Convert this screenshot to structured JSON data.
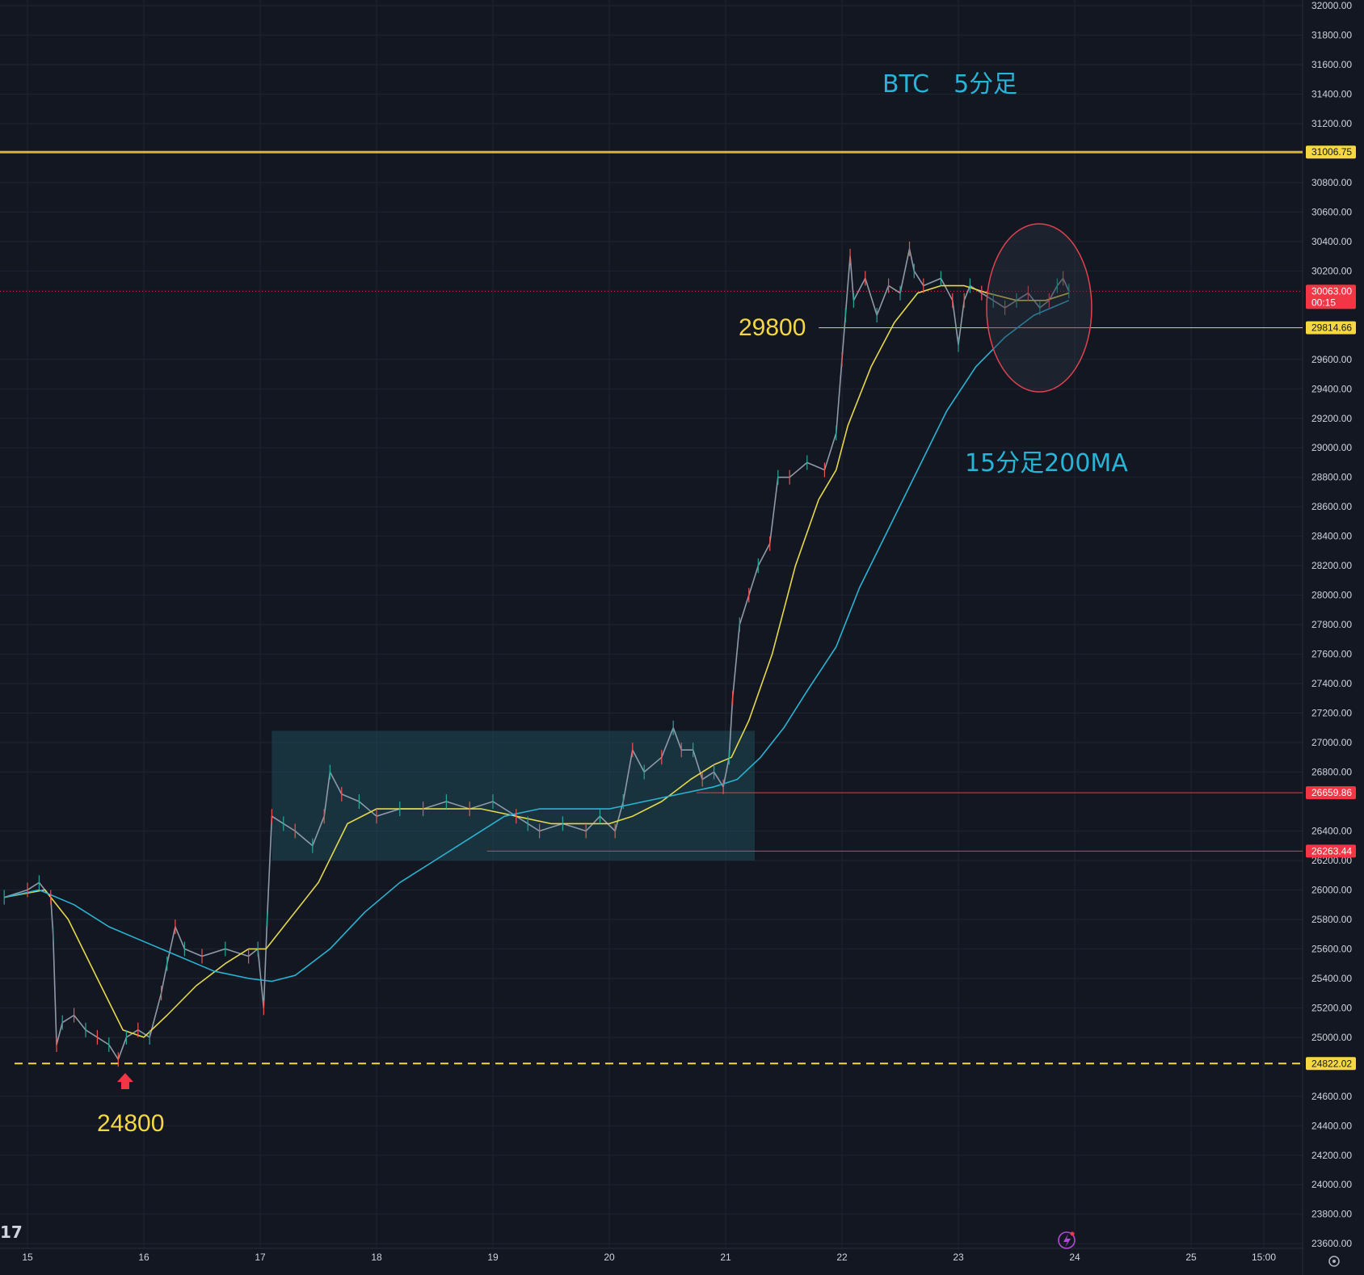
{
  "chart_data": {
    "type": "line",
    "symbol": "BTC",
    "timeframe": "5分足",
    "title": "BTC　5分足",
    "ylim": [
      23500,
      32000
    ],
    "y_ticks": [
      23600,
      23800,
      24000,
      24200,
      24400,
      24600,
      25000,
      25200,
      25400,
      25600,
      25800,
      26000,
      26200,
      26400,
      26800,
      27000,
      27200,
      27400,
      27600,
      27800,
      28000,
      28200,
      28400,
      28600,
      28800,
      29000,
      29200,
      29400,
      29600,
      30200,
      30400,
      30600,
      30800,
      31200,
      31400,
      31600,
      31800,
      32000
    ],
    "x_domain": [
      14.8,
      26.0
    ],
    "x_ticks": [
      {
        "x": 15,
        "label": "15"
      },
      {
        "x": 16,
        "label": "16"
      },
      {
        "x": 17,
        "label": "17"
      },
      {
        "x": 18,
        "label": "18"
      },
      {
        "x": 19,
        "label": "19"
      },
      {
        "x": 20,
        "label": "20"
      },
      {
        "x": 21,
        "label": "21"
      },
      {
        "x": 22,
        "label": "22"
      },
      {
        "x": 23,
        "label": "23"
      },
      {
        "x": 24,
        "label": "24"
      },
      {
        "x": 25,
        "label": "25"
      },
      {
        "x": 25.625,
        "label": "15:00"
      }
    ],
    "series": [
      {
        "name": "price",
        "color": "#8e9aa8",
        "points": [
          [
            14.8,
            25950
          ],
          [
            15.0,
            26000
          ],
          [
            15.1,
            26050
          ],
          [
            15.2,
            25950
          ],
          [
            15.22,
            25700
          ],
          [
            15.25,
            24950
          ],
          [
            15.3,
            25100
          ],
          [
            15.4,
            25150
          ],
          [
            15.5,
            25050
          ],
          [
            15.6,
            25000
          ],
          [
            15.7,
            24950
          ],
          [
            15.78,
            24850
          ],
          [
            15.85,
            25000
          ],
          [
            15.95,
            25050
          ],
          [
            16.05,
            25000
          ],
          [
            16.15,
            25300
          ],
          [
            16.2,
            25500
          ],
          [
            16.27,
            25750
          ],
          [
            16.35,
            25600
          ],
          [
            16.5,
            25550
          ],
          [
            16.7,
            25600
          ],
          [
            16.9,
            25550
          ],
          [
            16.98,
            25600
          ],
          [
            17.03,
            25200
          ],
          [
            17.06,
            25800
          ],
          [
            17.1,
            26500
          ],
          [
            17.2,
            26450
          ],
          [
            17.3,
            26400
          ],
          [
            17.45,
            26300
          ],
          [
            17.55,
            26500
          ],
          [
            17.6,
            26800
          ],
          [
            17.7,
            26650
          ],
          [
            17.85,
            26600
          ],
          [
            18.0,
            26500
          ],
          [
            18.2,
            26550
          ],
          [
            18.4,
            26550
          ],
          [
            18.6,
            26600
          ],
          [
            18.8,
            26550
          ],
          [
            19.0,
            26600
          ],
          [
            19.2,
            26500
          ],
          [
            19.3,
            26450
          ],
          [
            19.4,
            26400
          ],
          [
            19.6,
            26450
          ],
          [
            19.8,
            26400
          ],
          [
            19.92,
            26500
          ],
          [
            20.05,
            26400
          ],
          [
            20.12,
            26600
          ],
          [
            20.2,
            26950
          ],
          [
            20.3,
            26800
          ],
          [
            20.45,
            26900
          ],
          [
            20.55,
            27100
          ],
          [
            20.62,
            26950
          ],
          [
            20.72,
            26950
          ],
          [
            20.8,
            26750
          ],
          [
            20.9,
            26800
          ],
          [
            20.98,
            26700
          ],
          [
            21.03,
            26900
          ],
          [
            21.06,
            27300
          ],
          [
            21.12,
            27800
          ],
          [
            21.2,
            28000
          ],
          [
            21.28,
            28200
          ],
          [
            21.38,
            28350
          ],
          [
            21.45,
            28800
          ],
          [
            21.55,
            28800
          ],
          [
            21.7,
            28900
          ],
          [
            21.85,
            28850
          ],
          [
            21.95,
            29100
          ],
          [
            22.0,
            29600
          ],
          [
            22.03,
            29900
          ],
          [
            22.07,
            30300
          ],
          [
            22.1,
            30000
          ],
          [
            22.2,
            30150
          ],
          [
            22.3,
            29900
          ],
          [
            22.4,
            30100
          ],
          [
            22.5,
            30050
          ],
          [
            22.58,
            30350
          ],
          [
            22.62,
            30200
          ],
          [
            22.7,
            30100
          ],
          [
            22.85,
            30150
          ],
          [
            22.95,
            30000
          ],
          [
            23.0,
            29700
          ],
          [
            23.05,
            30000
          ],
          [
            23.1,
            30100
          ],
          [
            23.2,
            30050
          ],
          [
            23.3,
            30000
          ],
          [
            23.4,
            29950
          ],
          [
            23.5,
            30000
          ],
          [
            23.6,
            30050
          ],
          [
            23.7,
            29950
          ],
          [
            23.78,
            30000
          ],
          [
            23.85,
            30100
          ],
          [
            23.9,
            30150
          ],
          [
            23.95,
            30063
          ]
        ]
      },
      {
        "name": "MA",
        "color": "#e6d84a",
        "points": [
          [
            14.8,
            25950
          ],
          [
            15.15,
            26000
          ],
          [
            15.35,
            25800
          ],
          [
            15.6,
            25400
          ],
          [
            15.82,
            25050
          ],
          [
            16.0,
            25000
          ],
          [
            16.2,
            25150
          ],
          [
            16.45,
            25350
          ],
          [
            16.7,
            25500
          ],
          [
            16.9,
            25600
          ],
          [
            17.05,
            25600
          ],
          [
            17.2,
            25750
          ],
          [
            17.5,
            26050
          ],
          [
            17.75,
            26450
          ],
          [
            18.0,
            26550
          ],
          [
            18.3,
            26550
          ],
          [
            18.6,
            26550
          ],
          [
            18.9,
            26550
          ],
          [
            19.2,
            26500
          ],
          [
            19.5,
            26450
          ],
          [
            19.8,
            26450
          ],
          [
            20.0,
            26450
          ],
          [
            20.2,
            26500
          ],
          [
            20.45,
            26600
          ],
          [
            20.7,
            26750
          ],
          [
            20.9,
            26850
          ],
          [
            21.05,
            26900
          ],
          [
            21.2,
            27150
          ],
          [
            21.4,
            27600
          ],
          [
            21.6,
            28200
          ],
          [
            21.8,
            28650
          ],
          [
            21.95,
            28850
          ],
          [
            22.05,
            29150
          ],
          [
            22.25,
            29550
          ],
          [
            22.45,
            29850
          ],
          [
            22.65,
            30050
          ],
          [
            22.85,
            30100
          ],
          [
            23.05,
            30100
          ],
          [
            23.25,
            30050
          ],
          [
            23.5,
            30000
          ],
          [
            23.75,
            30000
          ],
          [
            23.95,
            30050
          ]
        ]
      },
      {
        "name": "15分足200MA",
        "color": "#2bb3d3",
        "points": [
          [
            14.8,
            25950
          ],
          [
            15.1,
            26000
          ],
          [
            15.4,
            25900
          ],
          [
            15.7,
            25750
          ],
          [
            16.0,
            25650
          ],
          [
            16.3,
            25550
          ],
          [
            16.6,
            25450
          ],
          [
            16.9,
            25400
          ],
          [
            17.1,
            25380
          ],
          [
            17.3,
            25420
          ],
          [
            17.6,
            25600
          ],
          [
            17.9,
            25850
          ],
          [
            18.2,
            26050
          ],
          [
            18.5,
            26200
          ],
          [
            18.8,
            26350
          ],
          [
            19.1,
            26500
          ],
          [
            19.4,
            26550
          ],
          [
            19.7,
            26550
          ],
          [
            20.0,
            26550
          ],
          [
            20.3,
            26600
          ],
          [
            20.6,
            26650
          ],
          [
            20.9,
            26700
          ],
          [
            21.1,
            26750
          ],
          [
            21.3,
            26900
          ],
          [
            21.5,
            27100
          ],
          [
            21.7,
            27350
          ],
          [
            21.95,
            27650
          ],
          [
            22.15,
            28050
          ],
          [
            22.4,
            28450
          ],
          [
            22.65,
            28850
          ],
          [
            22.9,
            29250
          ],
          [
            23.15,
            29550
          ],
          [
            23.4,
            29750
          ],
          [
            23.65,
            29900
          ],
          [
            23.95,
            30000
          ]
        ]
      }
    ],
    "price_tags": [
      {
        "value": 31006.75,
        "label": "31006.75",
        "bg": "#f5d742",
        "fg": "#131722"
      },
      {
        "value": 30063.0,
        "label": "30063.00",
        "sub": "00:15",
        "bg": "#f23645",
        "fg": "#ffffff"
      },
      {
        "value": 29814.66,
        "label": "29814.66",
        "bg": "#f5d742",
        "fg": "#131722"
      },
      {
        "value": 26659.86,
        "label": "26659.86",
        "bg": "#f23645",
        "fg": "#ffffff"
      },
      {
        "value": 26263.44,
        "label": "26263.44",
        "bg": "#f23645",
        "fg": "#ffffff"
      },
      {
        "value": 24822.02,
        "label": "24822.02",
        "bg": "#f5d742",
        "fg": "#131722"
      }
    ],
    "annotations": {
      "title": "BTC　5分足",
      "label_29800": "29800",
      "label_24800": "24800",
      "label_ma": "15分足200MA"
    },
    "grid": true,
    "colors": {
      "background": "#131722",
      "grid": "#1f2432",
      "resistance": "#d4b537",
      "support_line": "#f5d742",
      "red_line": "#f23645",
      "range_box": "#1d4a55"
    }
  }
}
